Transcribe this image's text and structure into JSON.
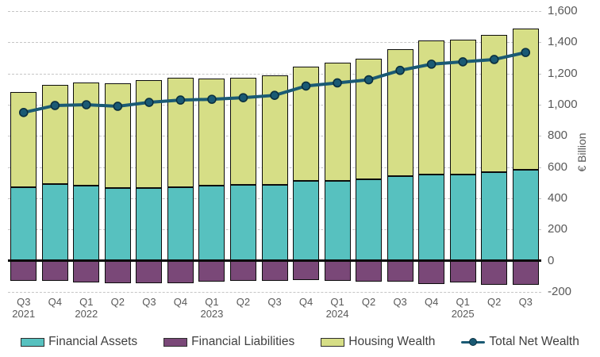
{
  "chart_data": {
    "type": "bar",
    "subtype": "stacked-bar-with-line",
    "ylabel": "€ Billion",
    "ylim": [
      -200,
      1600
    ],
    "ytick_step": 200,
    "grid": "dashed horizontal gridlines, solid black zero line",
    "legend_position": "bottom",
    "yticks": [
      {
        "value": 1600,
        "label": "1,600"
      },
      {
        "value": 1400,
        "label": "1,400"
      },
      {
        "value": 1200,
        "label": "1,200"
      },
      {
        "value": 1000,
        "label": "1,000"
      },
      {
        "value": 800,
        "label": "800"
      },
      {
        "value": 600,
        "label": "600"
      },
      {
        "value": 400,
        "label": "400"
      },
      {
        "value": 200,
        "label": "200"
      },
      {
        "value": 0,
        "label": "0"
      },
      {
        "value": -200,
        "label": "-200"
      }
    ],
    "categories": [
      {
        "quarter": "Q3",
        "year": "2021"
      },
      {
        "quarter": "Q4",
        "year": ""
      },
      {
        "quarter": "Q1",
        "year": "2022"
      },
      {
        "quarter": "Q2",
        "year": ""
      },
      {
        "quarter": "Q3",
        "year": ""
      },
      {
        "quarter": "Q4",
        "year": ""
      },
      {
        "quarter": "Q1",
        "year": "2023"
      },
      {
        "quarter": "Q2",
        "year": ""
      },
      {
        "quarter": "Q3",
        "year": ""
      },
      {
        "quarter": "Q4",
        "year": ""
      },
      {
        "quarter": "Q1",
        "year": "2024"
      },
      {
        "quarter": "Q2",
        "year": ""
      },
      {
        "quarter": "Q3",
        "year": ""
      },
      {
        "quarter": "Q4",
        "year": ""
      },
      {
        "quarter": "Q1",
        "year": "2025"
      },
      {
        "quarter": "Q2",
        "year": ""
      },
      {
        "quarter": "Q3",
        "year": ""
      }
    ],
    "series": [
      {
        "key": "assets",
        "name": "Financial Assets",
        "type": "bar",
        "color": "#57c1bf",
        "values": [
          470,
          490,
          480,
          465,
          465,
          470,
          480,
          485,
          485,
          510,
          510,
          520,
          540,
          555,
          555,
          570,
          585
        ]
      },
      {
        "key": "liabilities",
        "name": "Financial Liabilities",
        "type": "bar",
        "color": "#7a4878",
        "values": [
          -130,
          -130,
          -140,
          -145,
          -145,
          -145,
          -135,
          -130,
          -130,
          -125,
          -130,
          -135,
          -135,
          -150,
          -140,
          -155,
          -155
        ]
      },
      {
        "key": "housing",
        "name": "Housing Wealth",
        "type": "bar",
        "color": "#d6de86",
        "values": [
          610,
          635,
          660,
          670,
          695,
          705,
          690,
          690,
          705,
          735,
          760,
          775,
          815,
          855,
          860,
          875,
          905
        ]
      },
      {
        "key": "net",
        "name": "Total Net Wealth",
        "type": "line",
        "color": "#1a5a74",
        "values": [
          950,
          995,
          1000,
          990,
          1015,
          1030,
          1035,
          1045,
          1060,
          1120,
          1140,
          1160,
          1220,
          1260,
          1275,
          1290,
          1335
        ]
      }
    ]
  },
  "colors": {
    "grid": "#c6c6c6",
    "zero_line": "#0a0a0a",
    "axis_text": "#595959",
    "legend_text": "#404040",
    "bar_border": "#0c0c0c",
    "line_dot_ring": "#0b3040"
  }
}
